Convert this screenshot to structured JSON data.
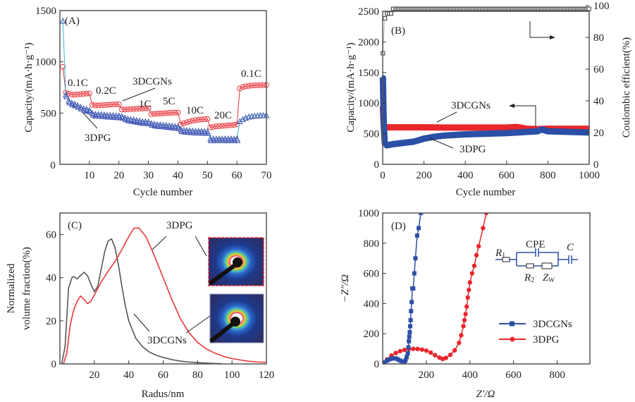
{
  "chart_data": [
    {
      "id": "A",
      "type": "scatter",
      "panel_label": "(A)",
      "xlabel": "Cycle number",
      "ylabel": "Capacity/(mA·h·g⁻¹)",
      "xlim": [
        0,
        70
      ],
      "ylim": [
        0,
        1500
      ],
      "xticks": [
        10,
        20,
        30,
        40,
        50,
        60,
        70
      ],
      "yticks": [
        0,
        500,
        1000,
        1500
      ],
      "x_origin_label": "0",
      "series": [
        {
          "name": "3DCGNs",
          "color": "#e8383d",
          "marker": "circle",
          "x": [
            1,
            2,
            3,
            4,
            5,
            6,
            7,
            8,
            9,
            10,
            11,
            12,
            13,
            14,
            15,
            16,
            17,
            18,
            19,
            20,
            21,
            22,
            23,
            24,
            25,
            26,
            27,
            28,
            29,
            30,
            31,
            32,
            33,
            34,
            35,
            36,
            37,
            38,
            39,
            40,
            41,
            42,
            43,
            44,
            45,
            46,
            47,
            48,
            49,
            50,
            51,
            52,
            53,
            54,
            55,
            56,
            57,
            58,
            59,
            60,
            61,
            62,
            63,
            64,
            65,
            66,
            67,
            68,
            69,
            70
          ],
          "y": [
            950,
            700,
            690,
            680,
            680,
            682,
            685,
            688,
            690,
            692,
            580,
            575,
            575,
            576,
            578,
            580,
            582,
            584,
            585,
            586,
            535,
            535,
            537,
            538,
            540,
            542,
            544,
            545,
            546,
            548,
            490,
            492,
            494,
            496,
            498,
            500,
            502,
            503,
            504,
            505,
            390,
            400,
            410,
            418,
            425,
            430,
            435,
            438,
            440,
            442,
            360,
            365,
            370,
            372,
            375,
            378,
            380,
            382,
            385,
            390,
            740,
            755,
            760,
            765,
            768,
            770,
            770,
            772,
            772,
            773
          ]
        },
        {
          "name": "3DPG",
          "color": "#3b4fb0",
          "marker": "triangle",
          "x": [
            1,
            2,
            3,
            4,
            5,
            6,
            7,
            8,
            9,
            10,
            11,
            12,
            13,
            14,
            15,
            16,
            17,
            18,
            19,
            20,
            21,
            22,
            23,
            24,
            25,
            26,
            27,
            28,
            29,
            30,
            31,
            32,
            33,
            34,
            35,
            36,
            37,
            38,
            39,
            40,
            41,
            42,
            43,
            44,
            45,
            46,
            47,
            48,
            49,
            50,
            51,
            52,
            53,
            54,
            55,
            56,
            57,
            58,
            59,
            60,
            61,
            62,
            63,
            64,
            65,
            66,
            67,
            68,
            69,
            70
          ],
          "y": [
            1400,
            680,
            620,
            600,
            590,
            575,
            560,
            545,
            540,
            530,
            500,
            490,
            490,
            488,
            485,
            482,
            480,
            478,
            476,
            475,
            470,
            455,
            445,
            440,
            435,
            430,
            425,
            420,
            418,
            415,
            400,
            395,
            390,
            388,
            385,
            382,
            378,
            375,
            372,
            370,
            340,
            335,
            332,
            330,
            328,
            326,
            325,
            324,
            323,
            322,
            250,
            250,
            250,
            250,
            250,
            250,
            250,
            250,
            250,
            252,
            420,
            440,
            455,
            465,
            470,
            474,
            476,
            478,
            478,
            478
          ]
        }
      ],
      "annotations": [
        "0.1C",
        "0.2C",
        "1C",
        "5C",
        "10C",
        "20C",
        "0.1C",
        "3DCGNs",
        "3DPG"
      ]
    },
    {
      "id": "B",
      "type": "scatter",
      "panel_label": "(B)",
      "xlabel": "Cycle number",
      "ylabel": "Capacity/(mA·h·g⁻¹)",
      "ylabel_right": "Coulombic efficient(%)",
      "xlim": [
        0,
        1000
      ],
      "ylim": [
        0,
        2500
      ],
      "ylim_right": [
        0,
        100
      ],
      "xticks": [
        0,
        200,
        400,
        600,
        800,
        1000
      ],
      "yticks": [
        0,
        500,
        1000,
        1500,
        2000,
        2500
      ],
      "yticks_right": [
        0,
        20,
        40,
        60,
        80,
        100
      ],
      "series": [
        {
          "name": "3DCGNs",
          "color": "#e8262b",
          "axis": "left",
          "x": [
            1,
            5,
            10,
            20,
            50,
            100,
            200,
            300,
            400,
            500,
            600,
            650,
            700,
            750,
            800,
            900,
            1000
          ],
          "y": [
            950,
            650,
            610,
            605,
            605,
            605,
            605,
            600,
            600,
            600,
            600,
            610,
            580,
            575,
            580,
            580,
            580
          ]
        },
        {
          "name": "3DPG",
          "color": "#2b4fa6",
          "axis": "left",
          "x": [
            1,
            5,
            10,
            20,
            50,
            100,
            150,
            200,
            250,
            300,
            400,
            500,
            600,
            700,
            750,
            770,
            800,
            900,
            1000
          ],
          "y": [
            1420,
            650,
            350,
            310,
            330,
            350,
            370,
            420,
            450,
            470,
            490,
            500,
            510,
            530,
            540,
            570,
            540,
            530,
            520
          ]
        },
        {
          "name": "Coulombic efficiency",
          "color": "#333333",
          "axis": "right",
          "marker": "open-square",
          "x": [
            1,
            10,
            20,
            30,
            40,
            60,
            100,
            150,
            200,
            300,
            400,
            500,
            600,
            700,
            800,
            850,
            900,
            1000
          ],
          "y": [
            70,
            92,
            94,
            95,
            96,
            98,
            98,
            98.5,
            98,
            98,
            98,
            97.5,
            98,
            98,
            98,
            98.5,
            98.5,
            98
          ]
        }
      ],
      "annotations": [
        "(B)",
        "3DCGNs",
        "3DPG"
      ]
    },
    {
      "id": "C",
      "type": "line",
      "panel_label": "(C)",
      "xlabel": "Radus/nm",
      "ylabel": "Normalized volume fraction(%)",
      "ylabel_lines": [
        "Normalized",
        "volume fraction(%)"
      ],
      "xlim": [
        0,
        120
      ],
      "ylim": [
        0,
        70
      ],
      "xticks": [
        20,
        40,
        60,
        80,
        100,
        120
      ],
      "yticks": [
        0,
        20,
        40,
        60
      ],
      "series": [
        {
          "name": "3DCGNs",
          "color": "#555555",
          "x": [
            1,
            3,
            5,
            7,
            8,
            10,
            12,
            14,
            16,
            18,
            20,
            22,
            24,
            26,
            28,
            30,
            32,
            34,
            36,
            38,
            40,
            44,
            48,
            52,
            56,
            60,
            65,
            70,
            75,
            80,
            85,
            90,
            94
          ],
          "y": [
            0,
            8,
            35,
            40,
            40.5,
            39.5,
            41,
            42.5,
            41,
            37,
            33.5,
            36,
            44,
            52,
            57,
            58,
            54,
            46,
            36,
            27,
            20,
            12,
            8,
            5.5,
            4,
            3,
            2,
            1.3,
            0.9,
            0.6,
            0.4,
            0.2,
            0.1
          ]
        },
        {
          "name": "3DPG",
          "color": "#e8383d",
          "x": [
            2,
            4,
            6,
            8,
            10,
            12,
            14,
            16,
            18,
            20,
            24,
            28,
            32,
            36,
            40,
            43,
            46,
            50,
            55,
            60,
            65,
            70,
            75,
            80,
            85,
            90,
            95,
            100,
            105,
            110,
            115,
            120
          ],
          "y": [
            0,
            5,
            18,
            25,
            29,
            31.5,
            30,
            28,
            29,
            32,
            38,
            43,
            47.5,
            53,
            59,
            63,
            63,
            59,
            50,
            40,
            30,
            21,
            14.5,
            10,
            7,
            5,
            3.5,
            2.5,
            1.8,
            1.2,
            0.9,
            0.7
          ]
        }
      ],
      "annotations": [
        "3DPG",
        "3DCGNs"
      ],
      "insets": [
        "3DPG SAXS pattern",
        "3DCGNs SAXS pattern"
      ]
    },
    {
      "id": "D",
      "type": "scatter",
      "panel_label": "(D)",
      "xlabel": "Z′/Ω",
      "ylabel": "−Z″/Ω",
      "xlim": [
        0,
        950
      ],
      "ylim": [
        0,
        1000
      ],
      "xticks": [
        200,
        400,
        600,
        800
      ],
      "yticks": [
        0,
        200,
        400,
        600,
        800,
        1000
      ],
      "series": [
        {
          "name": "3DCGNs",
          "color": "#2b4fa6",
          "marker": "square",
          "x": [
            0,
            10,
            20,
            30,
            40,
            50,
            60,
            70,
            80,
            90,
            100,
            105,
            110,
            115,
            118,
            120,
            122,
            124,
            126,
            128,
            130,
            133,
            136,
            140,
            145,
            150,
            158,
            165,
            175,
            182
          ],
          "y": [
            0,
            10,
            22,
            30,
            35,
            37,
            36,
            30,
            22,
            15,
            14,
            25,
            45,
            70,
            110,
            150,
            180,
            210,
            250,
            290,
            350,
            410,
            500,
            500,
            600,
            700,
            850,
            900,
            1000,
            1050
          ]
        },
        {
          "name": "3DPG",
          "color": "#e8262b",
          "marker": "circle",
          "x": [
            0,
            20,
            40,
            60,
            80,
            100,
            120,
            140,
            160,
            180,
            200,
            220,
            240,
            260,
            275,
            290,
            310,
            330,
            350,
            360,
            370,
            375,
            380,
            385,
            390,
            395,
            400,
            410,
            420,
            430,
            440,
            460,
            475
          ],
          "y": [
            0,
            30,
            55,
            72,
            85,
            93,
            98,
            100,
            99,
            95,
            88,
            75,
            58,
            42,
            33,
            40,
            60,
            90,
            140,
            190,
            250,
            290,
            330,
            380,
            440,
            490,
            540,
            600,
            650,
            720,
            780,
            900,
            1000
          ]
        }
      ],
      "legend": {
        "position": "bottom-right",
        "entries": [
          "3DCGNs",
          "3DPG"
        ]
      },
      "circuit_labels": {
        "cpe": "CPE",
        "r1": "R",
        "r1_sub": "1",
        "c": "C",
        "r2": "R",
        "r2_sub": "2",
        "zw": "Z",
        "zw_sub": "W"
      }
    }
  ],
  "labels": {
    "A": {
      "rates": [
        "0.1C",
        "0.2C",
        "1C",
        "5C",
        "10C",
        "20C",
        "0.1C"
      ],
      "cgn": "3DCGNs",
      "pg": "3DPG"
    },
    "B": {
      "cgn": "3DCGNs",
      "pg": "3DPG"
    },
    "C": {
      "cgn": "3DCGNs",
      "pg": "3DPG"
    }
  }
}
